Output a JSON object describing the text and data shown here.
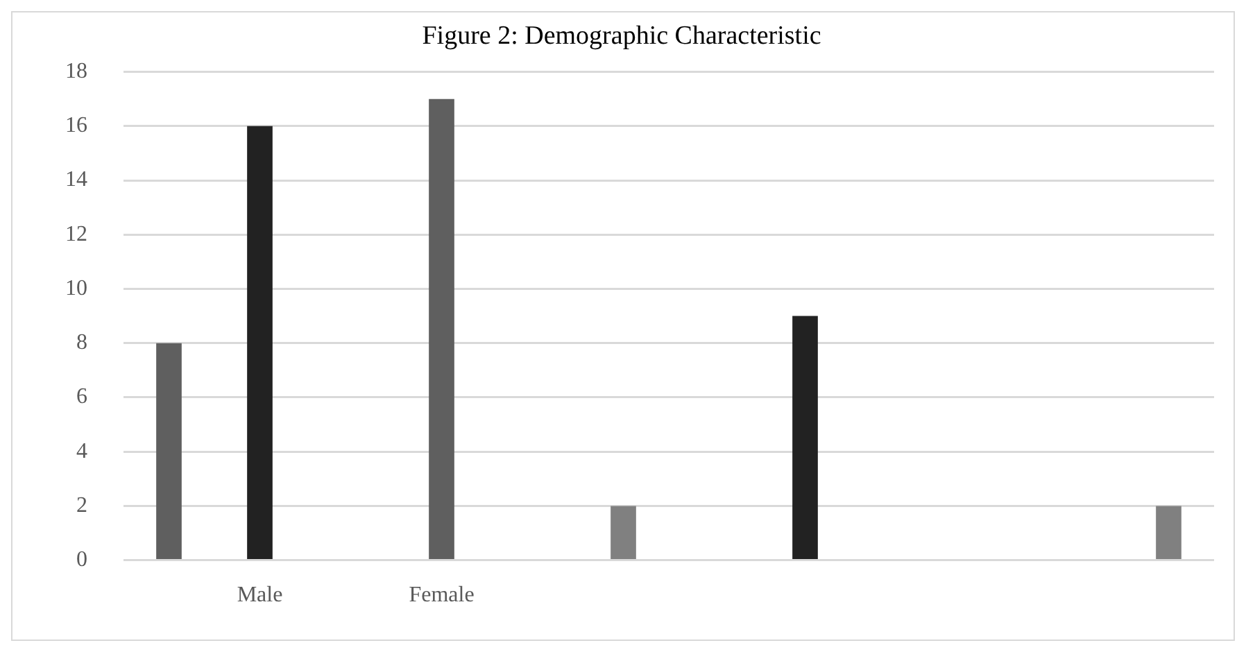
{
  "chart_data": {
    "type": "bar",
    "title": "Figure 2: Demographic Characteristic",
    "categories": [
      null,
      "Male",
      null,
      "Female",
      null,
      null,
      null,
      null,
      null,
      null,
      null,
      null
    ],
    "values": [
      8,
      16,
      null,
      17,
      null,
      2,
      null,
      9,
      null,
      null,
      null,
      2
    ],
    "colors": [
      "#5f5f5f",
      "#222222",
      "#5f5f5f",
      "#5f5f5f",
      "#5f5f5f",
      "#808080",
      "#222222",
      "#222222",
      "#808080",
      "#808080",
      "#808080",
      "#808080"
    ],
    "ylim": [
      0,
      18
    ],
    "yticks": [
      0,
      2,
      4,
      6,
      8,
      10,
      12,
      14,
      16,
      18
    ],
    "grid": "y"
  }
}
